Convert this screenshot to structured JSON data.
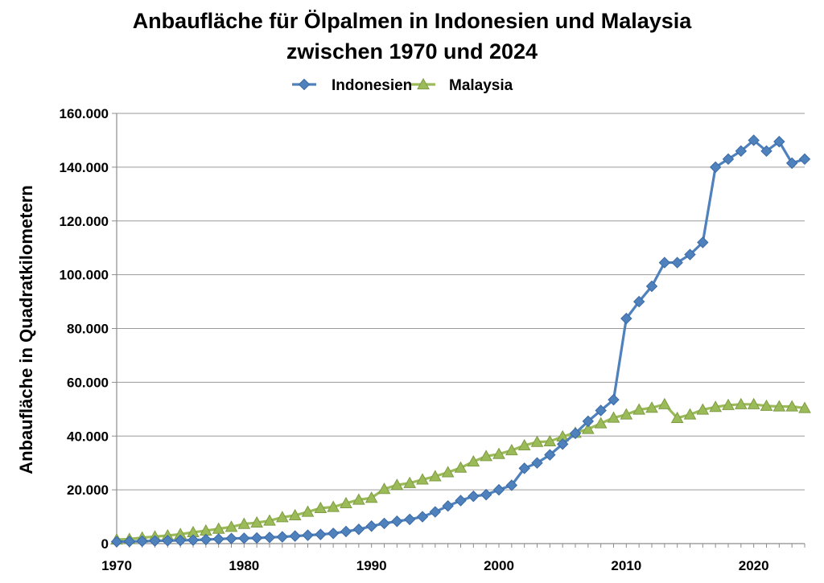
{
  "chart_data": {
    "type": "line",
    "title": [
      "Anbaufläche für Ölpalmen in Indonesien und Malaysia",
      "zwischen 1970 und 2024"
    ],
    "xlabel": "",
    "ylabel": "Anbaufläche in Quadratkilometern",
    "xlim": [
      1970,
      2024
    ],
    "ylim": [
      0,
      160000
    ],
    "x_ticks": [
      "1970",
      "1980",
      "1990",
      "2000",
      "2010",
      "2020"
    ],
    "y_ticks": [
      "0",
      "20.000",
      "40.000",
      "60.000",
      "80.000",
      "100.000",
      "120.000",
      "140.000",
      "160.000"
    ],
    "grid": "horizontal",
    "legend_position": "top",
    "x": [
      1970,
      1971,
      1972,
      1973,
      1974,
      1975,
      1976,
      1977,
      1978,
      1979,
      1980,
      1981,
      1982,
      1983,
      1984,
      1985,
      1986,
      1987,
      1988,
      1989,
      1990,
      1991,
      1992,
      1993,
      1994,
      1995,
      1996,
      1997,
      1998,
      1999,
      2000,
      2001,
      2002,
      2003,
      2004,
      2005,
      2006,
      2007,
      2008,
      2009,
      2010,
      2011,
      2012,
      2013,
      2014,
      2015,
      2016,
      2017,
      2018,
      2019,
      2020,
      2021,
      2022,
      2023,
      2024
    ],
    "series": [
      {
        "name": "Indonesien",
        "color": "#4F81BD",
        "marker": "diamond",
        "values": [
          700,
          800,
          900,
          1000,
          1100,
          1200,
          1300,
          1500,
          1700,
          1900,
          2000,
          2100,
          2300,
          2500,
          2800,
          3100,
          3400,
          3800,
          4500,
          5300,
          6500,
          7500,
          8300,
          9000,
          10000,
          11800,
          14000,
          16000,
          17600,
          18200,
          20000,
          21700,
          28000,
          30000,
          33000,
          37000,
          41000,
          45500,
          49500,
          53500,
          83700,
          90000,
          95700,
          104500,
          104500,
          107500,
          112000,
          140000,
          143000,
          146000,
          150000,
          146000,
          149500,
          141500,
          143000
        ]
      },
      {
        "name": "Malaysia",
        "color": "#9BBB59",
        "marker": "triangle",
        "values": [
          1500,
          1700,
          2200,
          2600,
          3000,
          3500,
          4200,
          4800,
          5500,
          6200,
          7300,
          7800,
          8500,
          9800,
          10500,
          11800,
          13200,
          13600,
          15000,
          16300,
          17000,
          20300,
          21800,
          22500,
          23800,
          25000,
          26500,
          28200,
          30500,
          32500,
          33300,
          34700,
          36500,
          37800,
          38000,
          39800,
          41200,
          42600,
          44700,
          46800,
          48000,
          49800,
          50500,
          51800,
          46700,
          48000,
          49800,
          50800,
          51500,
          51800,
          51800,
          51200,
          51000,
          51000,
          50400
        ]
      }
    ]
  }
}
